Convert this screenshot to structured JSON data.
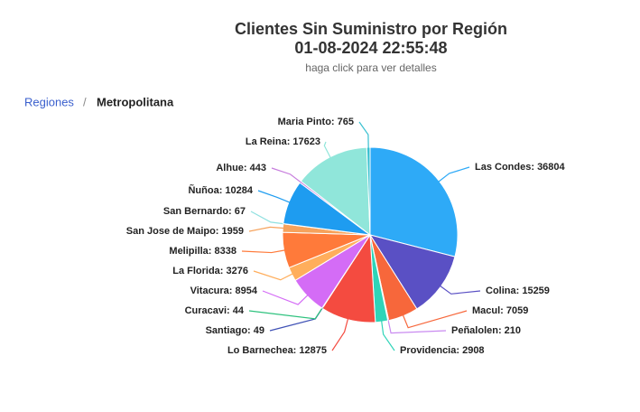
{
  "breadcrumb": {
    "parent": "Regiones",
    "separator": "/",
    "current": "Metropolitana"
  },
  "chart_data": {
    "type": "pie",
    "title": "Clientes Sin Suministro por Región",
    "subtitle": "01-08-2024 22:55:48",
    "hint": "haga click para ver detalles",
    "categories": [
      "Las Condes",
      "Colina",
      "Macul",
      "Peñalolen",
      "Providencia",
      "Lo Barnechea",
      "Santiago",
      "Curacavi",
      "Vitacura",
      "La Florida",
      "Melipilla",
      "San Jose de Maipo",
      "San Bernardo",
      "Ñuñoa",
      "Alhue",
      "La Reina",
      "Maria Pinto"
    ],
    "values": [
      36804,
      15259,
      7059,
      210,
      2908,
      12875,
      49,
      44,
      8954,
      3276,
      8338,
      1959,
      67,
      10284,
      443,
      17623,
      765
    ],
    "value_labels": [
      "Las Condes: 36804",
      "Colina: 15259",
      "Macul: 7059",
      "Peñalolen: 210",
      "Providencia: 2908",
      "Lo Barnechea: 12875",
      "Santiago: 49",
      "Curacavi: 44",
      "Vitacura: 8954",
      "La Florida: 3276",
      "Melipilla: 8338",
      "San Jose de Maipo: 1959",
      "San Bernardo: 67",
      "Ñuñoa: 10284",
      "Alhue: 443",
      "La Reina: 17623",
      "Maria Pinto: 765"
    ],
    "colors": [
      "#2eaaf7",
      "#5a50c4",
      "#f7673b",
      "#c98af0",
      "#2fd4b8",
      "#f44b40",
      "#3f51b5",
      "#2ec27e",
      "#d46cf6",
      "#ffae5c",
      "#ff7a3a",
      "#f6a25c",
      "#8fe0e0",
      "#1e9cf0",
      "#c77ddd",
      "#90e6da",
      "#38c0d0"
    ]
  }
}
